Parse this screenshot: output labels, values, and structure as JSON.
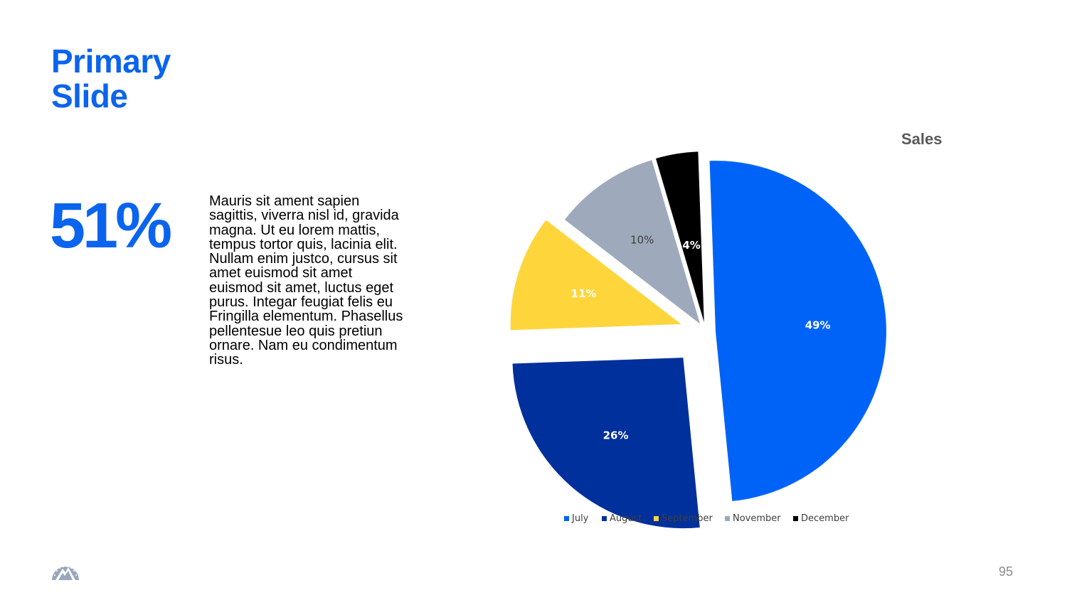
{
  "slide": {
    "title_line1": "Primary",
    "title_line2": "Slide",
    "stat": "51%",
    "body": "Mauris sit ament sapien sagittis, viverra nisl id, gravida magna. Ut eu lorem mattis, tempus tortor quis, lacinia elit. Nullam enim justco, cursus sit amet euismod sit amet euismod sit amet, luctus eget purus. Integar feugiat felis eu Fringilla elementum. Phasellus pellentesue leo quis pretiun ornare. Nam eu condimentum risus.",
    "page_number": "95",
    "logo_icon": "mountain-logo-icon"
  },
  "colors": {
    "accent": "#0a64ee"
  },
  "chart_data": {
    "type": "pie",
    "title": "Sales",
    "legend_position": "bottom",
    "slices": [
      {
        "label": "July",
        "value": 49,
        "data_label": "49%",
        "color": "#0063f7",
        "label_color": "#ffffff"
      },
      {
        "label": "August",
        "value": 26,
        "data_label": "26%",
        "color": "#00309b",
        "label_color": "#ffffff"
      },
      {
        "label": "September",
        "value": 11,
        "data_label": "11%",
        "color": "#ffd53c",
        "label_color": "#ffffff"
      },
      {
        "label": "November",
        "value": 10,
        "data_label": "10%",
        "color": "#9ea9bc",
        "label_color": "#404040"
      },
      {
        "label": "December",
        "value": 4,
        "data_label": "4%",
        "color": "#000000",
        "label_color": "#ffffff"
      }
    ]
  }
}
